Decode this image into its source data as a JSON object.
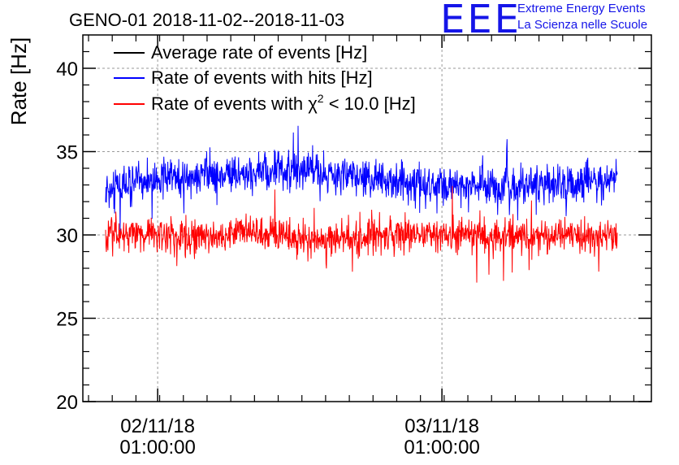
{
  "logo": {
    "mark": "EEE",
    "line1": "Extreme Energy Events",
    "line2": "La Scienza nelle Scuole",
    "color": "#1515e8"
  },
  "chart_data": {
    "type": "line",
    "title": "GENO-01 2018-11-02--2018-11-03",
    "ylabel": "Rate [Hz]",
    "xlabel": "",
    "ylim": [
      20,
      42
    ],
    "yticks": [
      20,
      25,
      30,
      35,
      40
    ],
    "x_tick_labels": [
      {
        "date": "02/11/18",
        "time": "01:00:00",
        "pos": 0.1316
      },
      {
        "date": "03/11/18",
        "time": "01:00:00",
        "pos": 0.6316
      }
    ],
    "x_data_range": [
      0.04,
      0.94
    ],
    "grid": true,
    "legend": {
      "position": "top-left",
      "entries": [
        {
          "label": "Average rate of events [Hz]",
          "color": "#000000"
        },
        {
          "label": "Rate of events with hits [Hz]",
          "color": "#0000ff"
        },
        {
          "label_pre": "Rate of events with ",
          "label_sym": "χ",
          "label_sup": "2",
          "label_post": " < 10.0 [Hz]",
          "color": "#ff0000"
        }
      ]
    },
    "series": [
      {
        "name": "Rate of events with hits [Hz]",
        "color": "#0000ff",
        "t": [
          0.04,
          0.1,
          0.2,
          0.3,
          0.4,
          0.5,
          0.6,
          0.7,
          0.8,
          0.9,
          0.94
        ],
        "mean": [
          32.8,
          33.2,
          33.5,
          33.7,
          33.8,
          33.4,
          33.0,
          32.9,
          33.0,
          33.2,
          33.3
        ],
        "spread": 0.8
      },
      {
        "name": "Rate of events with χ2 < 10.0 [Hz]",
        "color": "#ff0000",
        "t": [
          0.04,
          0.1,
          0.2,
          0.3,
          0.4,
          0.5,
          0.6,
          0.7,
          0.8,
          0.9,
          0.94
        ],
        "mean": [
          29.9,
          30.1,
          29.9,
          30.2,
          29.7,
          29.8,
          30.1,
          30.0,
          29.9,
          29.9,
          30.0
        ],
        "spread": 0.7
      }
    ]
  }
}
